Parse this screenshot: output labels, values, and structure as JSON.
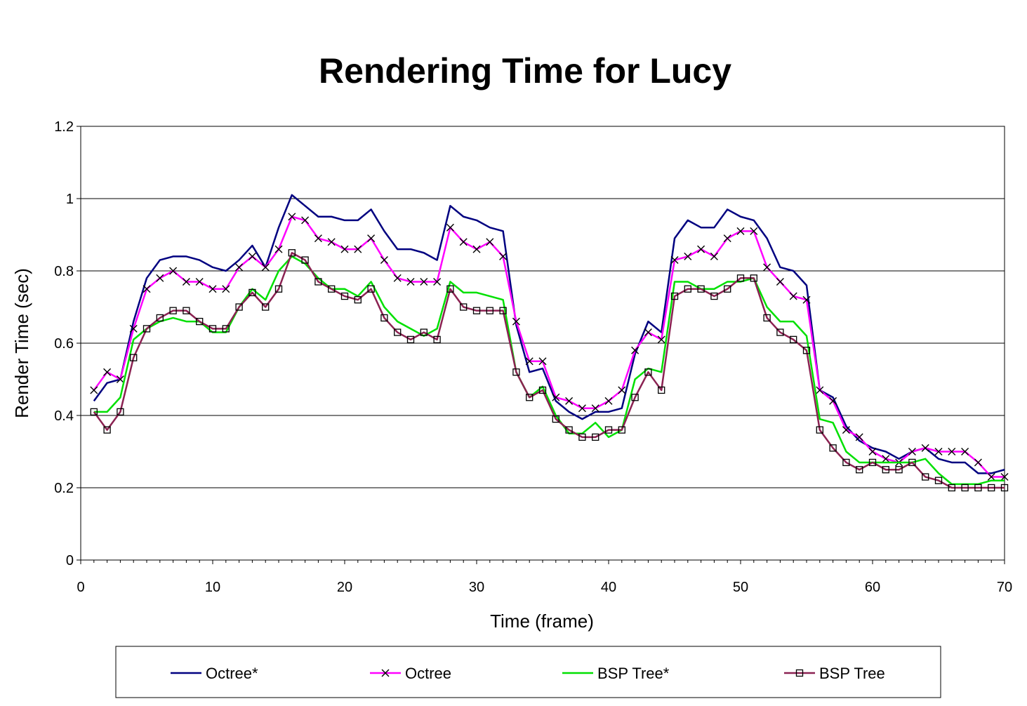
{
  "chart_data": {
    "type": "line",
    "title": "Rendering Time for Lucy",
    "xlabel": "Time (frame)",
    "ylabel": "Render Time (sec)",
    "xlim": [
      0,
      70
    ],
    "ylim": [
      0,
      1.2
    ],
    "xticks": [
      "0",
      "10",
      "20",
      "30",
      "40",
      "50",
      "60",
      "70"
    ],
    "yticks": [
      "0",
      "0.2",
      "0.4",
      "0.6",
      "0.8",
      "1",
      "1.2"
    ],
    "grid": "horizontal",
    "legend": "bottom",
    "series": [
      {
        "name": "Octree*",
        "color": "#000080",
        "marker": "none",
        "values": [
          0.44,
          0.49,
          0.5,
          0.66,
          0.78,
          0.83,
          0.84,
          0.84,
          0.83,
          0.81,
          0.8,
          0.83,
          0.87,
          0.81,
          0.92,
          1.01,
          0.98,
          0.95,
          0.95,
          0.94,
          0.94,
          0.97,
          0.91,
          0.86,
          0.86,
          0.85,
          0.83,
          0.98,
          0.95,
          0.94,
          0.92,
          0.91,
          0.65,
          0.52,
          0.53,
          0.44,
          0.41,
          0.39,
          0.41,
          0.41,
          0.42,
          0.57,
          0.66,
          0.63,
          0.89,
          0.94,
          0.92,
          0.92,
          0.97,
          0.95,
          0.94,
          0.89,
          0.81,
          0.8,
          0.76,
          0.47,
          0.45,
          0.37,
          0.33,
          0.31,
          0.3,
          0.28,
          0.3,
          0.31,
          0.28,
          0.27,
          0.27,
          0.24,
          0.24,
          0.25
        ]
      },
      {
        "name": "Octree",
        "color": "#ff00ff",
        "marker": "x",
        "values": [
          0.47,
          0.52,
          0.5,
          0.64,
          0.75,
          0.78,
          0.8,
          0.77,
          0.77,
          0.75,
          0.75,
          0.81,
          0.84,
          0.81,
          0.86,
          0.95,
          0.94,
          0.89,
          0.88,
          0.86,
          0.86,
          0.89,
          0.83,
          0.78,
          0.77,
          0.77,
          0.77,
          0.92,
          0.88,
          0.86,
          0.88,
          0.84,
          0.66,
          0.55,
          0.55,
          0.45,
          0.44,
          0.42,
          0.42,
          0.44,
          0.47,
          0.58,
          0.63,
          0.61,
          0.83,
          0.84,
          0.86,
          0.84,
          0.89,
          0.91,
          0.91,
          0.81,
          0.77,
          0.73,
          0.72,
          0.47,
          0.44,
          0.36,
          0.34,
          0.3,
          0.28,
          0.27,
          0.3,
          0.31,
          0.3,
          0.3,
          0.3,
          0.27,
          0.23,
          0.23
        ]
      },
      {
        "name": "BSP Tree*",
        "color": "#00e000",
        "marker": "none",
        "values": [
          0.41,
          0.41,
          0.45,
          0.61,
          0.64,
          0.66,
          0.67,
          0.66,
          0.66,
          0.63,
          0.63,
          0.7,
          0.75,
          0.72,
          0.8,
          0.84,
          0.82,
          0.78,
          0.75,
          0.75,
          0.73,
          0.77,
          0.7,
          0.66,
          0.64,
          0.62,
          0.64,
          0.77,
          0.74,
          0.74,
          0.73,
          0.72,
          0.52,
          0.45,
          0.48,
          0.4,
          0.35,
          0.35,
          0.38,
          0.34,
          0.36,
          0.5,
          0.53,
          0.52,
          0.77,
          0.77,
          0.75,
          0.75,
          0.77,
          0.77,
          0.78,
          0.7,
          0.66,
          0.66,
          0.62,
          0.39,
          0.38,
          0.3,
          0.27,
          0.27,
          0.27,
          0.27,
          0.27,
          0.28,
          0.24,
          0.21,
          0.21,
          0.21,
          0.22,
          0.22
        ]
      },
      {
        "name": "BSP Tree",
        "color": "#8b2252",
        "marker": "square",
        "values": [
          0.41,
          0.36,
          0.41,
          0.56,
          0.64,
          0.67,
          0.69,
          0.69,
          0.66,
          0.64,
          0.64,
          0.7,
          0.74,
          0.7,
          0.75,
          0.85,
          0.83,
          0.77,
          0.75,
          0.73,
          0.72,
          0.75,
          0.67,
          0.63,
          0.61,
          0.63,
          0.61,
          0.75,
          0.7,
          0.69,
          0.69,
          0.69,
          0.52,
          0.45,
          0.47,
          0.39,
          0.36,
          0.34,
          0.34,
          0.36,
          0.36,
          0.45,
          0.52,
          0.47,
          0.73,
          0.75,
          0.75,
          0.73,
          0.75,
          0.78,
          0.78,
          0.67,
          0.63,
          0.61,
          0.58,
          0.36,
          0.31,
          0.27,
          0.25,
          0.27,
          0.25,
          0.25,
          0.27,
          0.23,
          0.22,
          0.2,
          0.2,
          0.2,
          0.2,
          0.2
        ]
      }
    ]
  }
}
